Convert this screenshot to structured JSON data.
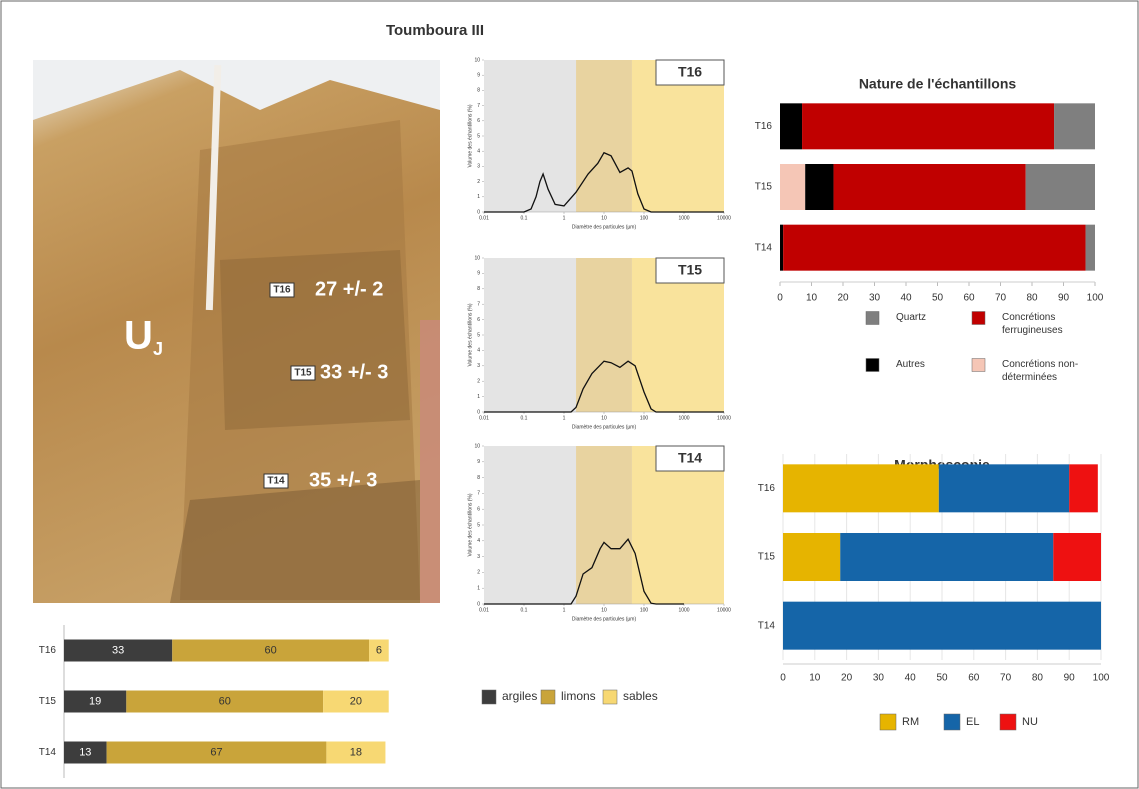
{
  "title": "Toumboura III",
  "photo": {
    "unit": "U",
    "unit_subscript": "J",
    "samples": [
      {
        "label": "T16",
        "age": "27 +/- 2"
      },
      {
        "label": "T15",
        "age": "33 +/- 3"
      },
      {
        "label": "T14",
        "age": "35 +/- 3"
      }
    ]
  },
  "chart_data": [
    {
      "type": "bar",
      "horizontal": true,
      "stacked": true,
      "data_labels": true,
      "categories": [
        "T16",
        "T15",
        "T14"
      ],
      "xlim": [
        0,
        100
      ],
      "series": [
        {
          "name": "argiles",
          "color": "#3d3d3d",
          "values": [
            33,
            19,
            13
          ]
        },
        {
          "name": "limons",
          "color": "#c9a43a",
          "values": [
            60,
            60,
            67
          ]
        },
        {
          "name": "sables",
          "color": "#f7d873",
          "values": [
            6,
            20,
            18
          ]
        }
      ]
    },
    {
      "type": "line",
      "title": "T16",
      "xlabel": "Diamètre des particules (µm)",
      "ylabel": "Volume des échantillons (%)",
      "xscale": "log",
      "xlim": [
        0.01,
        10000
      ],
      "xticks": [
        0.01,
        0.1,
        1,
        10,
        100,
        1000,
        10000
      ],
      "ylim": [
        0,
        10
      ],
      "yticks": [
        0,
        1,
        2,
        3,
        4,
        5,
        6,
        7,
        8,
        9,
        10
      ],
      "bands": [
        {
          "from": 0.01,
          "to": 2,
          "color": "#e4e4e4"
        },
        {
          "from": 2,
          "to": 50,
          "color": "#e8d3a0"
        },
        {
          "from": 50,
          "to": 10000,
          "color": "#f9e39c"
        }
      ],
      "series": [
        {
          "color": "#111111",
          "x": [
            0.01,
            0.1,
            0.15,
            0.2,
            0.25,
            0.3,
            0.4,
            0.6,
            1,
            2,
            4,
            7,
            10,
            15,
            25,
            40,
            50,
            70,
            100,
            150,
            10000
          ],
          "values": [
            0,
            0,
            0.2,
            1,
            2,
            2.5,
            1.5,
            0.5,
            0.4,
            1.3,
            2.5,
            3.2,
            3.9,
            3.7,
            2.6,
            2.9,
            2.7,
            1.2,
            0.2,
            0,
            0
          ]
        }
      ]
    },
    {
      "type": "line",
      "title": "T15",
      "xlabel": "Diamètre des particules (µm)",
      "ylabel": "Volume des échantillons (%)",
      "xscale": "log",
      "xlim": [
        0.01,
        10000
      ],
      "xticks": [
        0.01,
        0.1,
        1,
        10,
        100,
        1000,
        10000
      ],
      "ylim": [
        0,
        10
      ],
      "yticks": [
        0,
        1,
        2,
        3,
        4,
        5,
        6,
        7,
        8,
        9,
        10
      ],
      "bands": [
        {
          "from": 0.01,
          "to": 2,
          "color": "#e4e4e4"
        },
        {
          "from": 2,
          "to": 50,
          "color": "#e8d3a0"
        },
        {
          "from": 50,
          "to": 10000,
          "color": "#f9e39c"
        }
      ],
      "series": [
        {
          "color": "#111111",
          "x": [
            0.01,
            1.5,
            2,
            3,
            5,
            10,
            15,
            25,
            40,
            60,
            100,
            150,
            200,
            10000
          ],
          "values": [
            0,
            0,
            0.3,
            1.5,
            2.5,
            3.3,
            3.2,
            2.9,
            3.3,
            3.0,
            1.3,
            0.2,
            0,
            0
          ]
        }
      ]
    },
    {
      "type": "line",
      "title": "T14",
      "xlabel": "Diamètre des particules (µm)",
      "ylabel": "Volume des échantillons (%)",
      "xscale": "log",
      "xlim": [
        0.01,
        10000
      ],
      "xticks": [
        0.01,
        0.1,
        1,
        10,
        100,
        1000,
        10000
      ],
      "ylim": [
        0,
        10
      ],
      "yticks": [
        0,
        1,
        2,
        3,
        4,
        5,
        6,
        7,
        8,
        9,
        10
      ],
      "bands": [
        {
          "from": 0.01,
          "to": 2,
          "color": "#e4e4e4"
        },
        {
          "from": 2,
          "to": 50,
          "color": "#e8d3a0"
        },
        {
          "from": 50,
          "to": 10000,
          "color": "#f9e39c"
        }
      ],
      "series": [
        {
          "color": "#111111",
          "x": [
            0.01,
            1.5,
            2,
            3,
            5,
            8,
            10,
            15,
            25,
            40,
            60,
            100,
            150,
            200,
            1000
          ],
          "values": [
            0,
            0,
            0.5,
            1.9,
            2.3,
            3.5,
            3.9,
            3.5,
            3.5,
            4.1,
            3.2,
            0.8,
            0.05,
            0,
            0
          ]
        }
      ]
    },
    {
      "type": "bar",
      "horizontal": true,
      "stacked": true,
      "title": "Nature de l'échantillons",
      "categories": [
        "T16",
        "T15",
        "T14"
      ],
      "xlim": [
        0,
        100
      ],
      "xticks": [
        0,
        10,
        20,
        30,
        40,
        50,
        60,
        70,
        80,
        90,
        100
      ],
      "grid": false,
      "series": [
        {
          "name": "Concrétions non-déterminées",
          "color": "#f5c6b6",
          "values": [
            0,
            8,
            0
          ]
        },
        {
          "name": "Autres",
          "color": "#000000",
          "values": [
            7,
            9,
            1
          ]
        },
        {
          "name": "Concrétions ferrugineuses",
          "color": "#c00000",
          "values": [
            80,
            61,
            96
          ]
        },
        {
          "name": "Quartz",
          "color": "#7f7f7f",
          "values": [
            13,
            22,
            3
          ]
        }
      ]
    },
    {
      "type": "bar",
      "horizontal": true,
      "stacked": true,
      "title": "Morphoscopie",
      "categories": [
        "T16",
        "T15",
        "T14"
      ],
      "xlim": [
        0,
        100
      ],
      "xticks": [
        0,
        10,
        20,
        30,
        40,
        50,
        60,
        70,
        80,
        90,
        100
      ],
      "grid": true,
      "series": [
        {
          "name": "RM",
          "color": "#e6b400",
          "values": [
            49,
            18,
            0
          ]
        },
        {
          "name": "EL",
          "color": "#1565a8",
          "values": [
            41,
            67,
            100
          ]
        },
        {
          "name": "NU",
          "color": "#ee1111",
          "values": [
            9,
            15,
            0
          ]
        }
      ]
    }
  ]
}
